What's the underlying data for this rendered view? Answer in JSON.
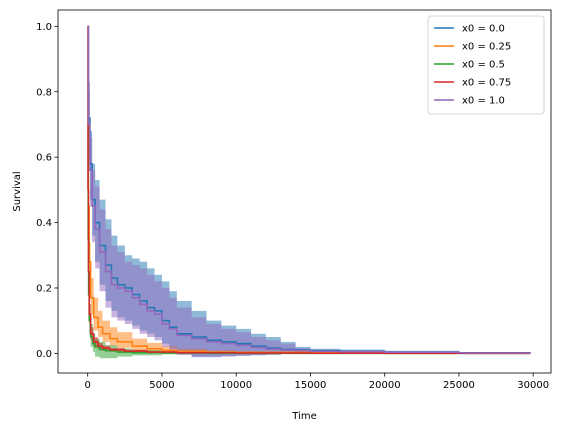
{
  "chart_data": {
    "type": "line",
    "title": "",
    "xlabel": "Time",
    "ylabel": "Survival",
    "xlim": [
      -2000,
      31200
    ],
    "ylim": [
      -0.06,
      1.05
    ],
    "xticks": [
      0,
      5000,
      10000,
      15000,
      20000,
      25000,
      30000
    ],
    "yticks": [
      0.0,
      0.2,
      0.4,
      0.6,
      0.8,
      1.0
    ],
    "xtick_labels": [
      "0",
      "5000",
      "10000",
      "15000",
      "20000",
      "25000",
      "30000"
    ],
    "ytick_labels": [
      "0.0",
      "0.2",
      "0.4",
      "0.6",
      "0.8",
      "1.0"
    ],
    "grid": false,
    "legend_position": "top-right",
    "series": [
      {
        "name": "x0 = 0.0",
        "color": "#1f77b4",
        "band_color": "#1f77b4",
        "x": [
          0,
          50,
          150,
          300,
          500,
          800,
          1200,
          1600,
          2000,
          2500,
          3000,
          3500,
          4000,
          4500,
          5000,
          5500,
          6000,
          7000,
          8000,
          9000,
          10000,
          11000,
          12000,
          13000,
          14000,
          15000,
          17000,
          20000,
          25000,
          29800
        ],
        "y": [
          1.0,
          0.72,
          0.58,
          0.47,
          0.4,
          0.33,
          0.27,
          0.23,
          0.21,
          0.2,
          0.18,
          0.16,
          0.14,
          0.13,
          0.1,
          0.08,
          0.06,
          0.05,
          0.04,
          0.035,
          0.03,
          0.022,
          0.016,
          0.012,
          0.01,
          0.008,
          0.006,
          0.004,
          0.002,
          0.001
        ],
        "lower": [
          1.0,
          0.62,
          0.47,
          0.36,
          0.28,
          0.21,
          0.16,
          0.13,
          0.11,
          0.1,
          0.085,
          0.07,
          0.06,
          0.05,
          0.03,
          0.015,
          0.0,
          -0.01,
          -0.01,
          -0.008,
          -0.006,
          -0.005,
          -0.004,
          -0.002,
          0.0,
          0.0,
          0.0,
          0.0,
          0.0,
          0.0
        ],
        "upper": [
          1.0,
          0.83,
          0.68,
          0.58,
          0.53,
          0.47,
          0.41,
          0.36,
          0.33,
          0.3,
          0.29,
          0.28,
          0.26,
          0.24,
          0.22,
          0.19,
          0.16,
          0.13,
          0.1,
          0.085,
          0.075,
          0.06,
          0.05,
          0.035,
          0.02,
          0.014,
          0.012,
          0.008,
          0.004,
          0.002
        ]
      },
      {
        "name": "x0 = 0.25",
        "color": "#ff7f0e",
        "band_color": "#ff7f0e",
        "x": [
          0,
          50,
          100,
          200,
          400,
          700,
          1000,
          1500,
          2000,
          3000,
          4000,
          5000,
          6000,
          8000,
          10000,
          15000,
          20000,
          25000,
          29800
        ],
        "y": [
          1.0,
          0.45,
          0.28,
          0.17,
          0.11,
          0.08,
          0.06,
          0.045,
          0.035,
          0.022,
          0.014,
          0.009,
          0.006,
          0.004,
          0.003,
          0.002,
          0.001,
          0.0005,
          0.0
        ],
        "lower": [
          1.0,
          0.38,
          0.22,
          0.12,
          0.07,
          0.05,
          0.035,
          0.024,
          0.017,
          0.008,
          0.003,
          0.001,
          0.0,
          0.0,
          0.0,
          0.0,
          0.0,
          0.0,
          0.0
        ],
        "upper": [
          1.0,
          0.52,
          0.34,
          0.23,
          0.17,
          0.13,
          0.1,
          0.08,
          0.065,
          0.045,
          0.032,
          0.022,
          0.015,
          0.01,
          0.006,
          0.004,
          0.002,
          0.001,
          0.0005
        ]
      },
      {
        "name": "x0 = 0.5",
        "color": "#2ca02c",
        "band_color": "#2ca02c",
        "x": [
          0,
          30,
          60,
          100,
          200,
          350,
          500,
          800,
          1200,
          2000,
          3000,
          5000,
          8000,
          12000,
          20000,
          29800
        ],
        "y": [
          1.0,
          0.35,
          0.18,
          0.1,
          0.05,
          0.03,
          0.02,
          0.012,
          0.008,
          0.004,
          0.002,
          0.001,
          0.0,
          0.0,
          0.0,
          0.0
        ],
        "lower": [
          1.0,
          0.28,
          0.13,
          0.06,
          0.02,
          0.005,
          -0.01,
          -0.015,
          -0.015,
          -0.01,
          -0.006,
          -0.003,
          -0.001,
          0.0,
          0.0,
          0.0
        ],
        "upper": [
          1.0,
          0.42,
          0.24,
          0.15,
          0.09,
          0.06,
          0.045,
          0.035,
          0.025,
          0.015,
          0.01,
          0.006,
          0.003,
          0.001,
          0.0,
          0.0
        ]
      },
      {
        "name": "x0 = 0.75",
        "color": "#d62728",
        "band_color": "#d62728",
        "x": [
          0,
          20,
          50,
          100,
          200,
          400,
          700,
          1000,
          1500,
          2500,
          4000,
          6000,
          10000,
          15000,
          20000,
          25000,
          29800
        ],
        "y": [
          1.0,
          0.5,
          0.25,
          0.12,
          0.06,
          0.035,
          0.022,
          0.016,
          0.011,
          0.007,
          0.004,
          0.002,
          0.001,
          0.0005,
          0.0,
          0.0,
          0.0
        ],
        "lower": [
          1.0,
          0.45,
          0.21,
          0.09,
          0.04,
          0.02,
          0.012,
          0.008,
          0.005,
          0.003,
          0.001,
          0.0,
          0.0,
          0.0,
          0.0,
          0.0,
          0.0
        ],
        "upper": [
          1.0,
          0.55,
          0.29,
          0.15,
          0.08,
          0.05,
          0.032,
          0.024,
          0.017,
          0.011,
          0.007,
          0.004,
          0.002,
          0.001,
          0.0005,
          0.0,
          0.0
        ]
      },
      {
        "name": "x0 = 1.0",
        "color": "#9467bd",
        "band_color": "#9467bd",
        "x": [
          0,
          50,
          150,
          300,
          500,
          800,
          1200,
          1600,
          2000,
          2500,
          3000,
          3500,
          4000,
          4500,
          5000,
          5500,
          6000,
          7000,
          8000,
          9000,
          10000,
          11000,
          12000,
          13000,
          14000,
          15000,
          17000,
          20000,
          25000,
          29800
        ],
        "y": [
          1.0,
          0.7,
          0.56,
          0.45,
          0.38,
          0.31,
          0.25,
          0.21,
          0.2,
          0.19,
          0.17,
          0.15,
          0.13,
          0.12,
          0.09,
          0.075,
          0.055,
          0.045,
          0.035,
          0.03,
          0.025,
          0.018,
          0.013,
          0.01,
          0.008,
          0.006,
          0.005,
          0.003,
          0.0015,
          0.001
        ],
        "lower": [
          1.0,
          0.6,
          0.45,
          0.34,
          0.26,
          0.19,
          0.14,
          0.11,
          0.1,
          0.09,
          0.075,
          0.06,
          0.05,
          0.04,
          0.02,
          0.005,
          -0.005,
          -0.012,
          -0.012,
          -0.01,
          -0.008,
          -0.006,
          -0.004,
          -0.002,
          0.0,
          0.0,
          0.0,
          0.0,
          0.0,
          0.0
        ],
        "upper": [
          1.0,
          0.8,
          0.66,
          0.56,
          0.51,
          0.44,
          0.38,
          0.33,
          0.31,
          0.28,
          0.27,
          0.26,
          0.24,
          0.22,
          0.2,
          0.17,
          0.14,
          0.11,
          0.09,
          0.075,
          0.065,
          0.05,
          0.04,
          0.03,
          0.017,
          0.012,
          0.01,
          0.007,
          0.003,
          0.0015
        ]
      }
    ]
  }
}
